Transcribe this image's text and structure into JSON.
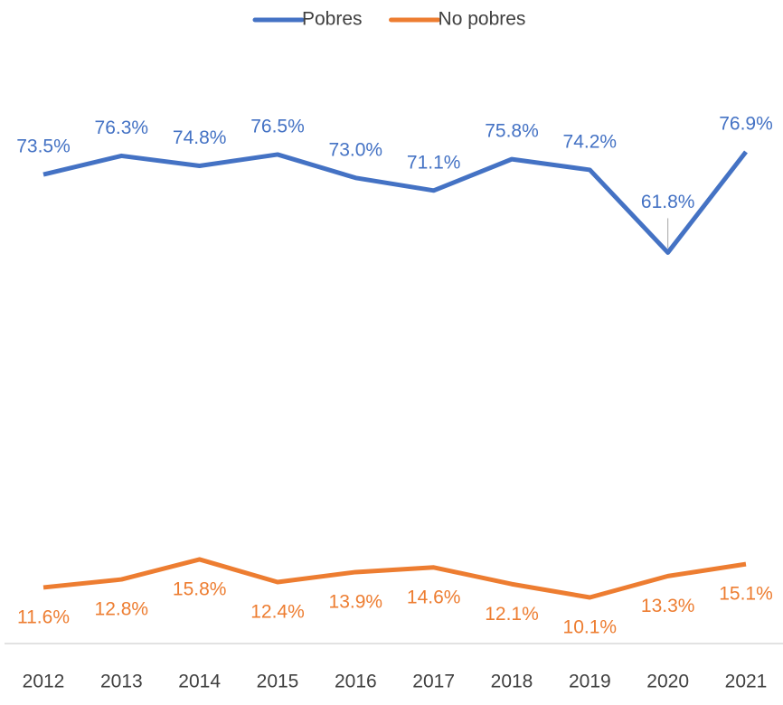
{
  "chart_data": {
    "type": "line",
    "categories": [
      "2012",
      "2013",
      "2014",
      "2015",
      "2016",
      "2017",
      "2018",
      "2019",
      "2020",
      "2021"
    ],
    "series": [
      {
        "name": "Pobres",
        "color": "#4472c4",
        "values": [
          73.5,
          76.3,
          74.8,
          76.5,
          73.0,
          71.1,
          75.8,
          74.2,
          61.8,
          76.9
        ],
        "value_labels": [
          "73.5%",
          "76.3%",
          "74.8%",
          "76.5%",
          "73.0%",
          "71.1%",
          "75.8%",
          "74.2%",
          "61.8%",
          "76.9%"
        ]
      },
      {
        "name": "No pobres",
        "color": "#ed7d31",
        "values": [
          11.6,
          12.8,
          15.8,
          12.4,
          13.9,
          14.6,
          12.1,
          10.1,
          13.3,
          15.1
        ],
        "value_labels": [
          "11.6%",
          "12.8%",
          "15.8%",
          "12.4%",
          "13.9%",
          "14.6%",
          "12.1%",
          "10.1%",
          "13.3%",
          "15.1%"
        ]
      }
    ],
    "legend": "top"
  }
}
